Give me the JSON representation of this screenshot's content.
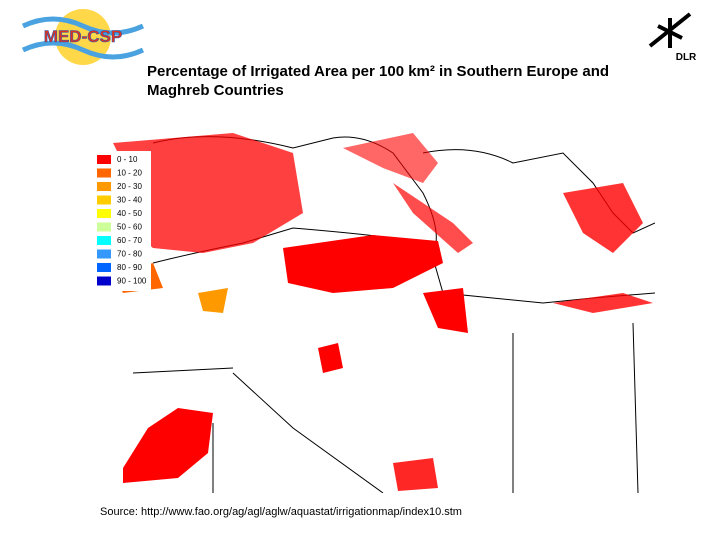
{
  "header": {
    "logo_left": "MED-CSP",
    "logo_right": "DLR",
    "title": "Percentage of Irrigated Area per 100 km² in Southern Europe and Maghreb Countries"
  },
  "legend": {
    "items": [
      {
        "label": "0 - 10",
        "color": "#ff0000"
      },
      {
        "label": "10 - 20",
        "color": "#ff6600"
      },
      {
        "label": "20 - 30",
        "color": "#ff9900"
      },
      {
        "label": "30 - 40",
        "color": "#ffcc00"
      },
      {
        "label": "40 - 50",
        "color": "#ffff00"
      },
      {
        "label": "50 - 60",
        "color": "#ccff99"
      },
      {
        "label": "60 - 70",
        "color": "#00ffff"
      },
      {
        "label": "70 - 80",
        "color": "#3399ff"
      },
      {
        "label": "80 - 90",
        "color": "#0066ff"
      },
      {
        "label": "90 - 100",
        "color": "#0000cc"
      }
    ]
  },
  "footer": {
    "source": "Source: http://www.fao.org/ag/agl/aglw/aquastat/irrigationmap/index10.stm"
  }
}
